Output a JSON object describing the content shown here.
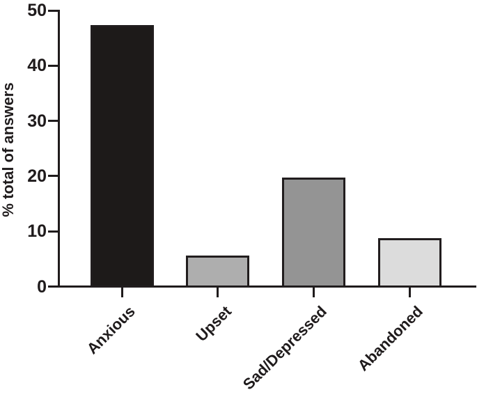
{
  "chart_data": {
    "type": "bar",
    "title": "",
    "categories": [
      "Anxious",
      "Upset",
      "Sad/Depressed",
      "Abandoned"
    ],
    "values": [
      47.3,
      5.6,
      19.7,
      8.8
    ],
    "xlabel": "",
    "ylabel": "% total of answers",
    "ylim": [
      0,
      50
    ],
    "yticks": [
      0,
      10,
      20,
      30,
      40,
      50
    ],
    "grid": false,
    "legend": null,
    "bar_fill_colors": [
      "#1d1a19",
      "#aeaeae",
      "#949494",
      "#dcdcdc"
    ],
    "bar_border_color": "#211d1e",
    "axis_color": "#1f1b1c",
    "text_color": "#1f1b1c",
    "background_color": "#ffffff"
  }
}
